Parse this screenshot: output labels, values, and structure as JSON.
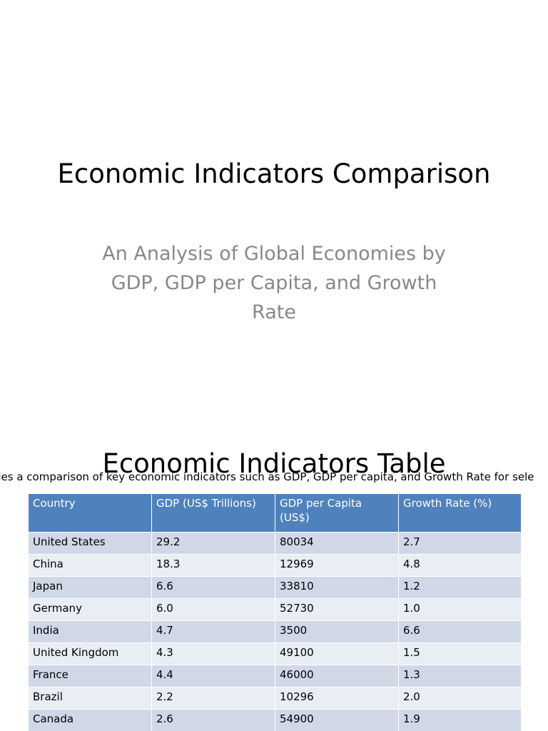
{
  "slide1": {
    "title": "Economic Indicators Comparison",
    "subtitle": "An Analysis of Global Economies by GDP, GDP per Capita, and Growth Rate"
  },
  "slide2": {
    "title": "Economic Indicators Table",
    "description": "des a comparison of key economic indicators such as GDP, GDP per capita, and Growth Rate for sele",
    "table": {
      "headers": [
        "Country",
        "GDP (US$ Trillions)",
        "GDP per Capita (US$)",
        "Growth Rate (%)"
      ],
      "rows": [
        [
          "United States",
          "29.2",
          "80034",
          "2.7"
        ],
        [
          "China",
          "18.3",
          "12969",
          "4.8"
        ],
        [
          "Japan",
          "6.6",
          "33810",
          "1.2"
        ],
        [
          "Germany",
          "6.0",
          "52730",
          "1.0"
        ],
        [
          "India",
          "4.7",
          "3500",
          "6.6"
        ],
        [
          "United Kingdom",
          "4.3",
          "49100",
          "1.5"
        ],
        [
          "France",
          "4.4",
          "46000",
          "1.3"
        ],
        [
          "Brazil",
          "2.2",
          "10296",
          "2.0"
        ],
        [
          "Canada",
          "2.6",
          "54900",
          "1.9"
        ]
      ]
    }
  },
  "colors": {
    "header_bg": "#4f81bd",
    "row_odd": "#d0d8e8",
    "row_even": "#e9edf4",
    "subtitle": "#888888"
  }
}
